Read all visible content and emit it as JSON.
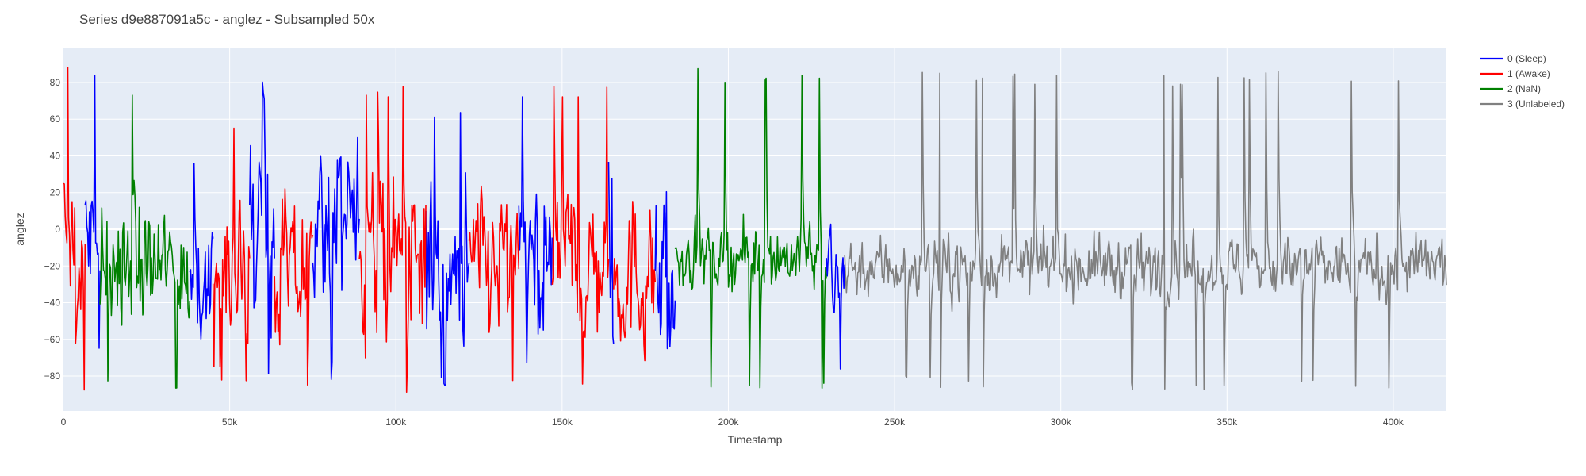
{
  "chart_data": {
    "type": "line",
    "title": "Series d9e887091a5c - anglez - Subsampled 50x",
    "xlabel": "Timestamp",
    "ylabel": "anglez",
    "xlim": [
      0,
      416000
    ],
    "ylim": [
      -99,
      99
    ],
    "x_ticks": [
      0,
      50000,
      100000,
      150000,
      200000,
      250000,
      300000,
      350000,
      400000
    ],
    "x_tick_labels": [
      "0",
      "50k",
      "100k",
      "150k",
      "200k",
      "250k",
      "300k",
      "350k",
      "400k"
    ],
    "y_ticks": [
      -80,
      -60,
      -40,
      -20,
      0,
      20,
      40,
      60,
      80
    ],
    "y_tick_labels": [
      "−80",
      "−60",
      "−40",
      "−20",
      "0",
      "20",
      "40",
      "60",
      "80"
    ],
    "grid": true,
    "legend_position": "top-right outside",
    "plot_background": "#e5ecf6",
    "series": [
      {
        "name": "0 (Sleep)",
        "color": "#0000ff",
        "segments": [
          {
            "x_start": 6500,
            "x_end": 11000,
            "y_mean": -10,
            "y_spread": 60,
            "y_min": -70,
            "y_max": 85
          },
          {
            "x_start": 38000,
            "x_end": 45000,
            "y_mean": -30,
            "y_spread": 40,
            "y_min": -90,
            "y_max": 40
          },
          {
            "x_start": 56000,
            "x_end": 63500,
            "y_mean": 0,
            "y_spread": 60,
            "y_min": -82,
            "y_max": 88
          },
          {
            "x_start": 75000,
            "x_end": 89000,
            "y_mean": 0,
            "y_spread": 60,
            "y_min": -82,
            "y_max": 87
          },
          {
            "x_start": 109000,
            "x_end": 122000,
            "y_mean": -20,
            "y_spread": 55,
            "y_min": -85,
            "y_max": 65
          },
          {
            "x_start": 137000,
            "x_end": 147000,
            "y_mean": -15,
            "y_spread": 55,
            "y_min": -80,
            "y_max": 80
          },
          {
            "x_start": 164000,
            "x_end": 165500,
            "y_mean": 0,
            "y_spread": 60,
            "y_min": -70,
            "y_max": 85
          },
          {
            "x_start": 178000,
            "x_end": 184000,
            "y_mean": -10,
            "y_spread": 60,
            "y_min": -65,
            "y_max": 85
          },
          {
            "x_start": 229500,
            "x_end": 235000,
            "y_mean": -25,
            "y_spread": 40,
            "y_min": -78,
            "y_max": 22
          }
        ]
      },
      {
        "name": "1 (Awake)",
        "color": "#ff0000",
        "segments": [
          {
            "x_start": 0,
            "x_end": 6500,
            "y_mean": -20,
            "y_spread": 55,
            "y_min": -90,
            "y_max": 89
          },
          {
            "x_start": 45000,
            "x_end": 56000,
            "y_mean": -25,
            "y_spread": 50,
            "y_min": -90,
            "y_max": 60
          },
          {
            "x_start": 63500,
            "x_end": 75000,
            "y_mean": -25,
            "y_spread": 50,
            "y_min": -90,
            "y_max": 82
          },
          {
            "x_start": 89000,
            "x_end": 109000,
            "y_mean": -20,
            "y_spread": 55,
            "y_min": -90,
            "y_max": 78
          },
          {
            "x_start": 122000,
            "x_end": 137000,
            "y_mean": -20,
            "y_spread": 55,
            "y_min": -90,
            "y_max": 90
          },
          {
            "x_start": 147000,
            "x_end": 164000,
            "y_mean": -20,
            "y_spread": 55,
            "y_min": -90,
            "y_max": 80
          },
          {
            "x_start": 165500,
            "x_end": 178000,
            "y_mean": -25,
            "y_spread": 50,
            "y_min": -90,
            "y_max": 60
          }
        ]
      },
      {
        "name": "2 (NaN)",
        "color": "#008000",
        "segments": [
          {
            "x_start": 11000,
            "x_end": 38000,
            "y_mean": -20,
            "y_spread": 40,
            "y_min": -88,
            "y_max": 80
          },
          {
            "x_start": 184000,
            "x_end": 229500,
            "y_mean": -15,
            "y_spread": 22,
            "y_min": -88,
            "y_max": 88
          }
        ]
      },
      {
        "name": "3 (Unlabeled)",
        "color": "#808080",
        "segments": [
          {
            "x_start": 235000,
            "x_end": 416000,
            "y_mean": -20,
            "y_spread": 20,
            "y_min": -88,
            "y_max": 86
          }
        ]
      }
    ]
  }
}
